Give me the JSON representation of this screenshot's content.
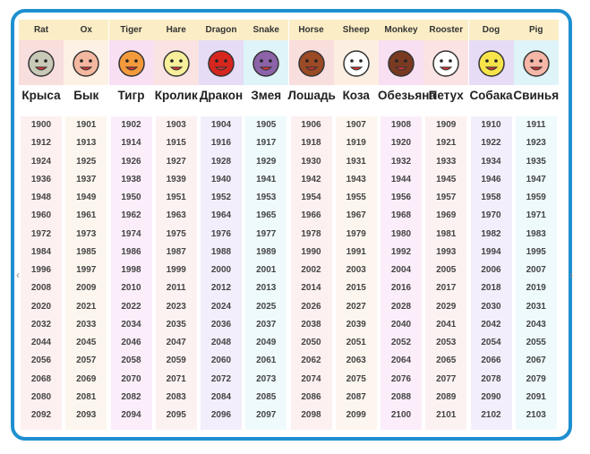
{
  "columns": [
    {
      "en": "Rat",
      "ru": "Крыса",
      "icon": "rat-icon",
      "bg": "#f9dede",
      "ybg": "#fdf0f0"
    },
    {
      "en": "Ox",
      "ru": "Бык",
      "icon": "ox-icon",
      "bg": "#fdf0e4",
      "ybg": "#fdf6ee"
    },
    {
      "en": "Tiger",
      "ru": "Тигр",
      "icon": "tiger-icon",
      "bg": "#f8dff2",
      "ybg": "#fbeefa"
    },
    {
      "en": "Hare",
      "ru": "Кролик",
      "icon": "hare-icon",
      "bg": "#fbe3e3",
      "ybg": "#fdf2f2"
    },
    {
      "en": "Dragon",
      "ru": "Дракон",
      "icon": "dragon-icon",
      "bg": "#e6dcf6",
      "ybg": "#f3eefb"
    },
    {
      "en": "Snake",
      "ru": "Змея",
      "icon": "snake-icon",
      "bg": "#def4f8",
      "ybg": "#eefafc"
    },
    {
      "en": "Horse",
      "ru": "Лошадь",
      "icon": "horse-icon",
      "bg": "#f9dede",
      "ybg": "#fdf0f0"
    },
    {
      "en": "Sheep",
      "ru": "Коза",
      "icon": "sheep-icon",
      "bg": "#fdeee2",
      "ybg": "#fdf6ee"
    },
    {
      "en": "Monkey",
      "ru": "Обезьяна",
      "icon": "monkey-icon",
      "bg": "#f8dff2",
      "ybg": "#fbeefa"
    },
    {
      "en": "Rooster",
      "ru": "Петух",
      "icon": "rooster-icon",
      "bg": "#fbe3e3",
      "ybg": "#fdf2f2"
    },
    {
      "en": "Dog",
      "ru": "Собака",
      "icon": "dog-icon",
      "bg": "#e6dcf6",
      "ybg": "#f3eefb"
    },
    {
      "en": "Pig",
      "ru": "Свинья",
      "icon": "pig-icon",
      "bg": "#def4f8",
      "ybg": "#eefafc"
    }
  ],
  "years": [
    [
      "1900",
      "1901",
      "1902",
      "1903",
      "1904",
      "1905",
      "1906",
      "1907",
      "1908",
      "1909",
      "1910",
      "1911"
    ],
    [
      "1912",
      "1913",
      "1914",
      "1915",
      "1916",
      "1917",
      "1918",
      "1919",
      "1920",
      "1921",
      "1922",
      "1923"
    ],
    [
      "1924",
      "1925",
      "1926",
      "1927",
      "1928",
      "1929",
      "1930",
      "1931",
      "1932",
      "1933",
      "1934",
      "1935"
    ],
    [
      "1936",
      "1937",
      "1938",
      "1939",
      "1940",
      "1941",
      "1942",
      "1943",
      "1944",
      "1945",
      "1946",
      "1947"
    ],
    [
      "1948",
      "1949",
      "1950",
      "1951",
      "1952",
      "1953",
      "1954",
      "1955",
      "1956",
      "1957",
      "1958",
      "1959"
    ],
    [
      "1960",
      "1961",
      "1962",
      "1963",
      "1964",
      "1965",
      "1966",
      "1967",
      "1968",
      "1969",
      "1970",
      "1971"
    ],
    [
      "1972",
      "1973",
      "1974",
      "1975",
      "1976",
      "1977",
      "1978",
      "1979",
      "1980",
      "1981",
      "1982",
      "1983"
    ],
    [
      "1984",
      "1985",
      "1986",
      "1987",
      "1988",
      "1989",
      "1990",
      "1991",
      "1992",
      "1993",
      "1994",
      "1995"
    ],
    [
      "1996",
      "1997",
      "1998",
      "1999",
      "2000",
      "2001",
      "2002",
      "2003",
      "2004",
      "2005",
      "2006",
      "2007"
    ],
    [
      "2008",
      "2009",
      "2010",
      "2011",
      "2012",
      "2013",
      "2014",
      "2015",
      "2016",
      "2017",
      "2018",
      "2019"
    ],
    [
      "2020",
      "2021",
      "2022",
      "2023",
      "2024",
      "2025",
      "2026",
      "2027",
      "2028",
      "2029",
      "2030",
      "2031"
    ],
    [
      "2032",
      "2033",
      "2034",
      "2035",
      "2036",
      "2037",
      "2038",
      "2039",
      "2040",
      "2041",
      "2042",
      "2043"
    ],
    [
      "2044",
      "2045",
      "2046",
      "2047",
      "2048",
      "2049",
      "2050",
      "2051",
      "2052",
      "2053",
      "2054",
      "2055"
    ],
    [
      "2056",
      "2057",
      "2058",
      "2059",
      "2060",
      "2061",
      "2062",
      "2063",
      "2064",
      "2065",
      "2066",
      "2067"
    ],
    [
      "2068",
      "2069",
      "2070",
      "2071",
      "2072",
      "2073",
      "2074",
      "2075",
      "2076",
      "2077",
      "2078",
      "2079"
    ],
    [
      "2080",
      "2081",
      "2082",
      "2083",
      "2084",
      "2085",
      "2086",
      "2087",
      "2088",
      "2089",
      "2090",
      "2091"
    ],
    [
      "2092",
      "2093",
      "2094",
      "2095",
      "2096",
      "2097",
      "2098",
      "2099",
      "2100",
      "2101",
      "2102",
      "2103"
    ]
  ],
  "icon_colors": {
    "rat-icon": "#c9c9b8",
    "ox-icon": "#f4b8a0",
    "tiger-icon": "#f39a3c",
    "hare-icon": "#f7ef9a",
    "dragon-icon": "#d7261e",
    "snake-icon": "#8c63a8",
    "horse-icon": "#9b4a25",
    "sheep-icon": "#ffffff",
    "monkey-icon": "#7a3a22",
    "rooster-icon": "#ffffff",
    "dog-icon": "#f7e34a",
    "pig-icon": "#f6b7a8"
  }
}
